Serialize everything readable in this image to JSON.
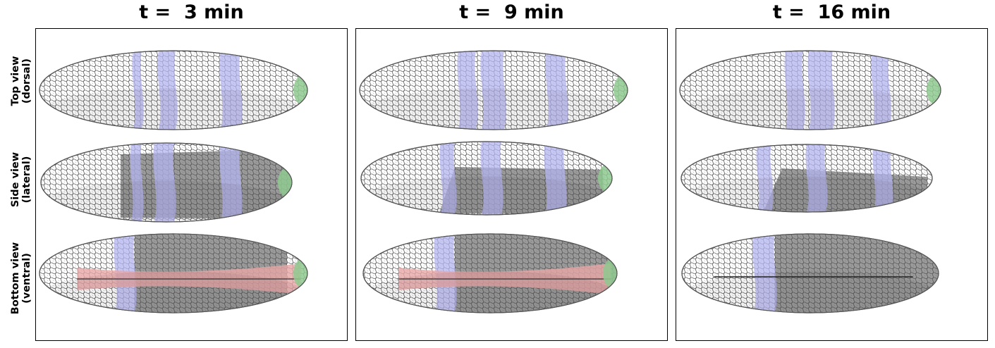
{
  "columns": [
    {
      "title": "t =  3 min"
    },
    {
      "title": "t =  9 min"
    },
    {
      "title": "t =  16 min"
    }
  ],
  "rows": [
    {
      "label_line1": "Top view",
      "label_line2": "(dorsal)"
    },
    {
      "label_line1": "Side view",
      "label_line2": "(lateral)"
    },
    {
      "label_line1": "Bottom view",
      "label_line2": "(ventral)"
    }
  ],
  "colors": {
    "cell_fill": "#ffffff",
    "cell_edge": "#555555",
    "mesoderm_gray": "#9a9a9a",
    "stripe_blue": "#b4b4f0",
    "pole_green": "#8fc98f",
    "ventral_red": "#e8a6a6",
    "border": "#000000"
  }
}
